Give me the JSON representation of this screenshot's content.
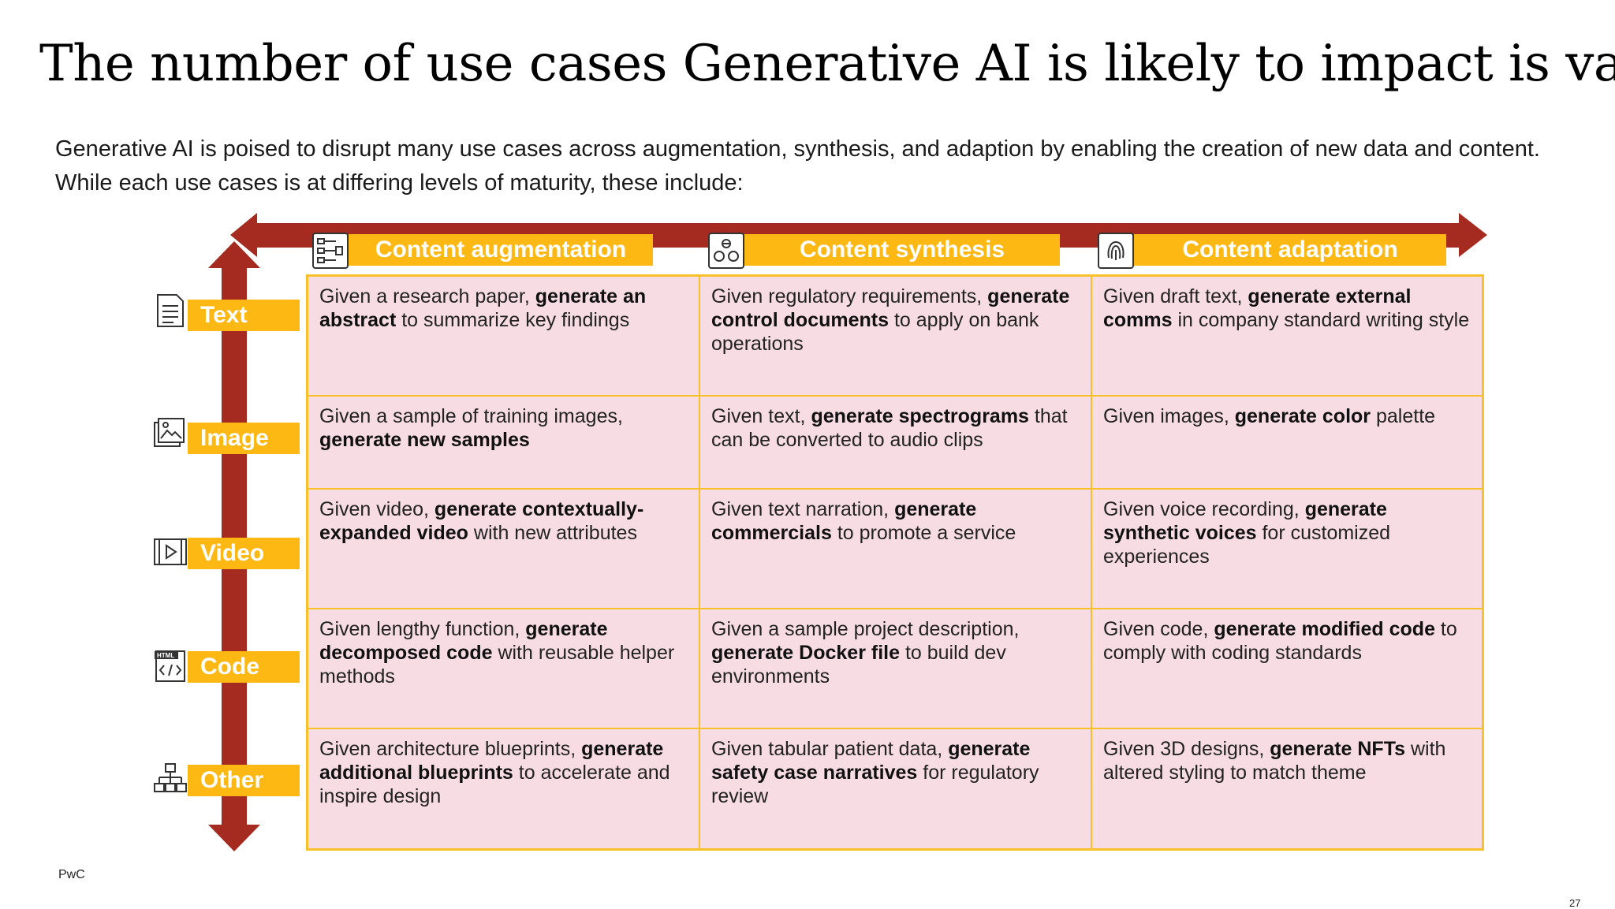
{
  "title": "The number of use cases Generative AI is likely to impact is vast",
  "subtitle": "Generative AI is poised to disrupt many use cases across augmentation, synthesis, and adaption by enabling the creation of new data and content. While each use cases is at differing levels of maturity, these include:",
  "colors": {
    "accent": "#fdb813",
    "arrow": "#a52a1f",
    "cell_bg": "#f7dde3",
    "border": "#f8c12a"
  },
  "columns": [
    {
      "label": "Content augmentation",
      "icon": "workflow-icon"
    },
    {
      "label": "Content synthesis",
      "icon": "components-icon"
    },
    {
      "label": "Content adaptation",
      "icon": "fingerprint-icon"
    }
  ],
  "rows": [
    {
      "label": "Text",
      "icon": "document-icon",
      "cells": [
        {
          "pre": " Given a research paper, ",
          "bold": "generate an abstract",
          "post": " to summarize key findings"
        },
        {
          "pre": "Given regulatory requirements, ",
          "bold": "generate control documents",
          "post": " to apply on bank operations"
        },
        {
          "pre": "Given draft text, ",
          "bold": "generate external comms",
          "post": " in company standard writing style"
        }
      ]
    },
    {
      "label": "Image",
      "icon": "image-icon",
      "cells": [
        {
          "pre": "Given a sample of training images, ",
          "bold": "generate new samples",
          "post": ""
        },
        {
          "pre": "Given text, ",
          "bold": "generate spectrograms",
          "post": " that can be converted to audio clips"
        },
        {
          "pre": "Given images, ",
          "bold": "generate color",
          "post": " palette"
        }
      ]
    },
    {
      "label": "Video",
      "icon": "video-icon",
      "cells": [
        {
          "pre": "Given video, ",
          "bold": "generate contextually-expanded video",
          "post": " with new attributes"
        },
        {
          "pre": "Given text narration, ",
          "bold": "generate commercials",
          "post": " to promote a service"
        },
        {
          "pre": "Given voice recording, ",
          "bold": "generate synthetic voices",
          "post": " for customized experiences"
        }
      ]
    },
    {
      "label": "Code",
      "icon": "html-code-icon",
      "cells": [
        {
          "pre": "Given lengthy function, ",
          "bold": "generate decomposed code",
          "post": " with reusable helper methods"
        },
        {
          "pre": "Given a sample project description, ",
          "bold": "generate Docker file",
          "post": " to build dev environments"
        },
        {
          "pre": "Given code, ",
          "bold": "generate modified code",
          "post": " to comply with coding standards"
        }
      ]
    },
    {
      "label": "Other",
      "icon": "hierarchy-icon",
      "cells": [
        {
          "pre": "Given architecture blueprints, ",
          "bold": "generate additional blueprints",
          "post": " to accelerate and inspire design"
        },
        {
          "pre": "Given tabular patient data, ",
          "bold": "generate safety case narratives",
          "post": " for regulatory review"
        },
        {
          "pre": "Given 3D designs, ",
          "bold": "generate NFTs",
          "post": " with altered styling to match theme"
        }
      ]
    }
  ],
  "footer": {
    "brand": "PwC",
    "page_number": "27"
  }
}
